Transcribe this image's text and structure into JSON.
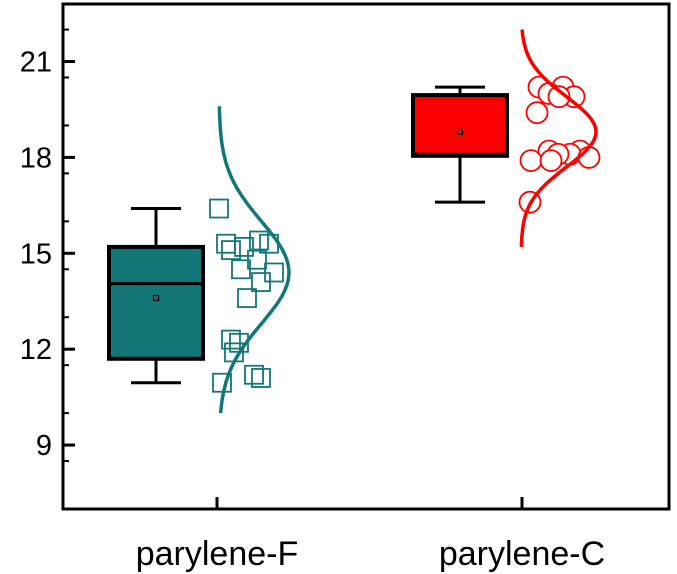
{
  "chart_data": {
    "type": "box",
    "title": "",
    "xlabel": "",
    "ylabel": "",
    "ylim": [
      7.0,
      22.8
    ],
    "yticks": [
      9,
      12,
      15,
      18,
      21
    ],
    "yticks_labels": [
      "9",
      "12",
      "15",
      "18",
      "21"
    ],
    "grid": false,
    "legend": "none",
    "categories": [
      "parylene-F",
      "parylene-C"
    ],
    "series": [
      {
        "category": "parylene-F",
        "color": "#137777",
        "marker": "square",
        "box": {
          "whisker_low": 10.95,
          "q1": 11.7,
          "median": 14.05,
          "q3": 15.2,
          "whisker_high": 16.4,
          "mean": 13.6
        },
        "points": [
          16.4,
          15.3,
          15.2,
          15.4,
          15.3,
          15.1,
          14.8,
          14.5,
          14.4,
          14.1,
          13.6,
          12.3,
          12.2,
          11.9,
          11.2,
          11.1,
          10.95
        ],
        "distribution": {
          "mean": 14.4,
          "sd": 1.6,
          "ymin": 10.0,
          "ymax": 19.6
        }
      },
      {
        "category": "parylene-C",
        "color": "#ff0000",
        "marker": "circle",
        "box": {
          "whisker_low": 16.6,
          "q1": 18.05,
          "median": 18.1,
          "q3": 19.95,
          "whisker_high": 20.2,
          "mean": 18.8
        },
        "points": [
          20.2,
          20.2,
          20.0,
          19.9,
          19.9,
          19.4,
          18.2,
          18.2,
          18.1,
          18.1,
          18.0,
          17.9,
          17.9,
          16.6
        ],
        "distribution": {
          "mean": 18.8,
          "sd": 1.1,
          "ymin": 15.2,
          "ymax": 22.0
        }
      }
    ]
  }
}
